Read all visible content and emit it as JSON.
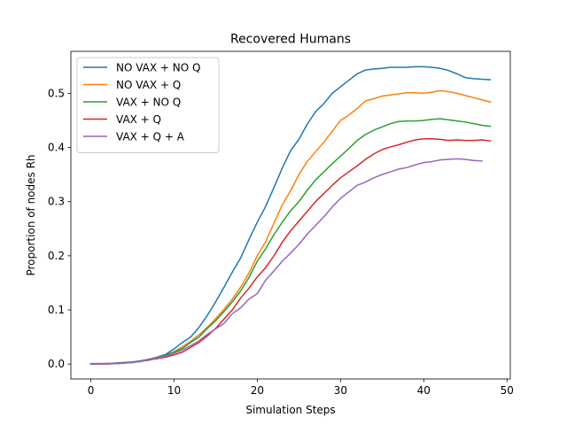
{
  "chart_data": {
    "type": "line",
    "title": "Recovered Humans",
    "xlabel": "Simulation Steps",
    "ylabel": "Proportion of nodes Rh",
    "xlim": [
      -2.4,
      50.4
    ],
    "ylim": [
      -0.0275,
      0.5775
    ],
    "xticks": [
      0,
      10,
      20,
      30,
      40,
      50
    ],
    "yticks": [
      0.0,
      0.1,
      0.2,
      0.3,
      0.4,
      0.5
    ],
    "xtick_labels": [
      "0",
      "10",
      "20",
      "30",
      "40",
      "50"
    ],
    "ytick_labels": [
      "0.0",
      "0.1",
      "0.2",
      "0.3",
      "0.4",
      "0.5"
    ],
    "grid": false,
    "legend_position": "top-left",
    "series": [
      {
        "name": "NO VAX + NO Q",
        "color": "#1f77b4",
        "x": [
          0,
          1,
          2,
          3,
          4,
          5,
          6,
          7,
          8,
          9,
          10,
          11,
          12,
          13,
          14,
          15,
          16,
          17,
          18,
          19,
          20,
          21,
          22,
          23,
          24,
          25,
          26,
          27,
          28,
          29,
          30,
          31,
          32,
          33,
          34,
          35,
          36,
          37,
          38,
          39,
          40,
          41,
          42,
          43,
          44,
          45,
          46,
          47,
          48
        ],
        "y": [
          0.001,
          0.001,
          0.001,
          0.002,
          0.003,
          0.004,
          0.006,
          0.009,
          0.013,
          0.018,
          0.028,
          0.04,
          0.05,
          0.068,
          0.09,
          0.115,
          0.142,
          0.17,
          0.196,
          0.23,
          0.262,
          0.291,
          0.326,
          0.362,
          0.394,
          0.415,
          0.443,
          0.466,
          0.481,
          0.5,
          0.512,
          0.524,
          0.536,
          0.543,
          0.545,
          0.546,
          0.548,
          0.548,
          0.548,
          0.549,
          0.549,
          0.548,
          0.546,
          0.542,
          0.536,
          0.529,
          0.527,
          0.526,
          0.525
        ]
      },
      {
        "name": "NO VAX + Q",
        "color": "#ff7f0e",
        "x": [
          0,
          1,
          2,
          3,
          4,
          5,
          6,
          7,
          8,
          9,
          10,
          11,
          12,
          13,
          14,
          15,
          16,
          17,
          18,
          19,
          20,
          21,
          22,
          23,
          24,
          25,
          26,
          27,
          28,
          29,
          30,
          31,
          32,
          33,
          34,
          35,
          36,
          37,
          38,
          39,
          40,
          41,
          42,
          43,
          44,
          45,
          46,
          47,
          48
        ],
        "y": [
          0.0,
          0.001,
          0.001,
          0.001,
          0.002,
          0.003,
          0.005,
          0.008,
          0.012,
          0.016,
          0.023,
          0.032,
          0.042,
          0.054,
          0.068,
          0.084,
          0.101,
          0.12,
          0.142,
          0.168,
          0.2,
          0.226,
          0.26,
          0.294,
          0.32,
          0.35,
          0.374,
          0.392,
          0.41,
          0.43,
          0.45,
          0.46,
          0.472,
          0.486,
          0.49,
          0.495,
          0.497,
          0.499,
          0.501,
          0.501,
          0.5,
          0.502,
          0.505,
          0.503,
          0.5,
          0.496,
          0.492,
          0.488,
          0.484
        ]
      },
      {
        "name": "VAX + NO Q",
        "color": "#2ca02c",
        "x": [
          0,
          1,
          2,
          3,
          4,
          5,
          6,
          7,
          8,
          9,
          10,
          11,
          12,
          13,
          14,
          15,
          16,
          17,
          18,
          19,
          20,
          21,
          22,
          23,
          24,
          25,
          26,
          27,
          28,
          29,
          30,
          31,
          32,
          33,
          34,
          35,
          36,
          37,
          38,
          39,
          40,
          41,
          42,
          43,
          44,
          45,
          46,
          47,
          48
        ],
        "y": [
          0.0,
          0.0,
          0.001,
          0.001,
          0.002,
          0.003,
          0.005,
          0.008,
          0.012,
          0.017,
          0.022,
          0.029,
          0.04,
          0.05,
          0.066,
          0.08,
          0.097,
          0.115,
          0.135,
          0.16,
          0.19,
          0.213,
          0.239,
          0.262,
          0.283,
          0.3,
          0.321,
          0.34,
          0.355,
          0.37,
          0.384,
          0.398,
          0.413,
          0.424,
          0.432,
          0.438,
          0.444,
          0.448,
          0.449,
          0.449,
          0.45,
          0.452,
          0.453,
          0.451,
          0.449,
          0.447,
          0.444,
          0.441,
          0.439
        ]
      },
      {
        "name": "VAX + Q",
        "color": "#d62728",
        "x": [
          0,
          1,
          2,
          3,
          4,
          5,
          6,
          7,
          8,
          9,
          10,
          11,
          12,
          13,
          14,
          15,
          16,
          17,
          18,
          19,
          20,
          21,
          22,
          23,
          24,
          25,
          26,
          27,
          28,
          29,
          30,
          31,
          32,
          33,
          34,
          35,
          36,
          37,
          38,
          39,
          40,
          41,
          42,
          43,
          44,
          45,
          46,
          47,
          48
        ],
        "y": [
          0.0,
          0.0,
          0.0,
          0.001,
          0.002,
          0.003,
          0.005,
          0.008,
          0.01,
          0.013,
          0.017,
          0.022,
          0.031,
          0.04,
          0.052,
          0.066,
          0.083,
          0.1,
          0.122,
          0.14,
          0.161,
          0.178,
          0.2,
          0.225,
          0.246,
          0.264,
          0.282,
          0.3,
          0.315,
          0.33,
          0.344,
          0.355,
          0.366,
          0.378,
          0.388,
          0.396,
          0.401,
          0.405,
          0.41,
          0.414,
          0.416,
          0.416,
          0.415,
          0.413,
          0.414,
          0.413,
          0.413,
          0.414,
          0.412
        ]
      },
      {
        "name": "VAX + Q + A",
        "color": "#9467bd",
        "x": [
          0,
          1,
          2,
          3,
          4,
          5,
          6,
          7,
          8,
          9,
          10,
          11,
          12,
          13,
          14,
          15,
          16,
          17,
          18,
          19,
          20,
          21,
          22,
          23,
          24,
          25,
          26,
          27,
          28,
          29,
          30,
          31,
          32,
          33,
          34,
          35,
          36,
          37,
          38,
          39,
          40,
          41,
          42,
          43,
          44,
          45,
          46,
          47
        ],
        "y": [
          0.0,
          0.0,
          0.001,
          0.001,
          0.002,
          0.003,
          0.005,
          0.007,
          0.011,
          0.015,
          0.02,
          0.026,
          0.034,
          0.043,
          0.055,
          0.065,
          0.075,
          0.093,
          0.104,
          0.12,
          0.13,
          0.155,
          0.172,
          0.19,
          0.205,
          0.221,
          0.24,
          0.256,
          0.272,
          0.29,
          0.306,
          0.318,
          0.33,
          0.336,
          0.344,
          0.35,
          0.355,
          0.36,
          0.363,
          0.368,
          0.372,
          0.374,
          0.377,
          0.378,
          0.379,
          0.378,
          0.376,
          0.375
        ]
      }
    ]
  }
}
